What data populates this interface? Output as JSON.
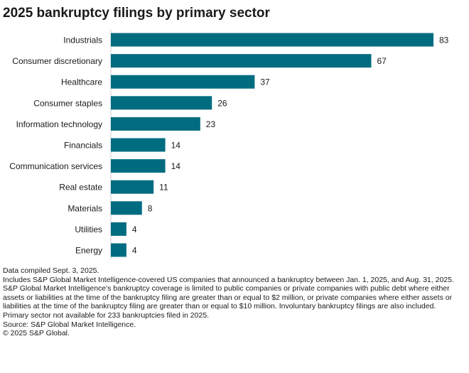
{
  "title": "2025 bankruptcy filings by primary sector",
  "chart_data": {
    "type": "bar",
    "orientation": "horizontal",
    "title": "2025 bankruptcy filings by primary sector",
    "categories": [
      "Industrials",
      "Consumer discretionary",
      "Healthcare",
      "Consumer staples",
      "Information technology",
      "Financials",
      "Communication services",
      "Real estate",
      "Materials",
      "Utilities",
      "Energy"
    ],
    "values": [
      83,
      67,
      37,
      26,
      23,
      14,
      14,
      11,
      8,
      4,
      4
    ],
    "xlim": [
      0,
      83
    ],
    "data_labels": true,
    "grid": false,
    "legend": "none",
    "bar_color": "#006c80"
  },
  "notes": [
    "Data compiled Sept. 3, 2025.",
    "Includes S&P Global Market Intelligence-covered US companies that announced a bankruptcy between Jan. 1, 2025, and Aug. 31, 2025.",
    "S&P Global Market Intelligence's bankruptcy coverage is limited to public companies or private companies with public debt where either assets or liabilities at the time of the bankruptcy filing are greater than or equal to $2 million, or private companies where either assets or liabilities at the time of the bankruptcy filing are greater than or equal to $10 million. Involuntary bankruptcy filings are also included.",
    "Primary sector not available for 233 bankruptcies filed in 2025.",
    "Source: S&P Global Market Intelligence.",
    "© 2025 S&P Global."
  ]
}
